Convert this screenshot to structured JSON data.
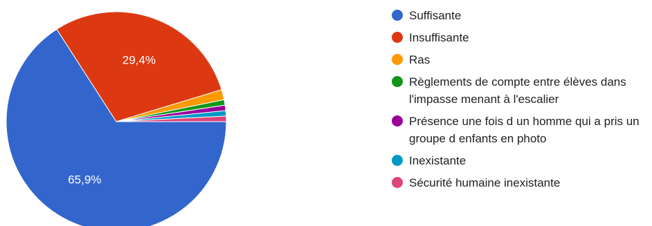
{
  "chart_data": {
    "type": "pie",
    "slices": [
      {
        "label": "Suffisante",
        "value": 65.9,
        "display": "65,9%",
        "color": "#3366cc"
      },
      {
        "label": "Insuffisante",
        "value": 29.4,
        "display": "29,4%",
        "color": "#dc3912"
      },
      {
        "label": "Ras",
        "value": 1.5,
        "display": "",
        "color": "#ff9900"
      },
      {
        "label": "Règlements de compte entre élèves dans l'impasse menant à l'escalier",
        "value": 0.8,
        "display": "",
        "color": "#109618"
      },
      {
        "label": "Présence une fois d un homme qui a pris un groupe d enfants en photo",
        "value": 0.8,
        "display": "",
        "color": "#990099"
      },
      {
        "label": "Inexistante",
        "value": 0.8,
        "display": "",
        "color": "#0099c6"
      },
      {
        "label": "Sécurité humaine inexistante",
        "value": 0.8,
        "display": "",
        "color": "#dd4477"
      }
    ],
    "legend_position": "right"
  }
}
